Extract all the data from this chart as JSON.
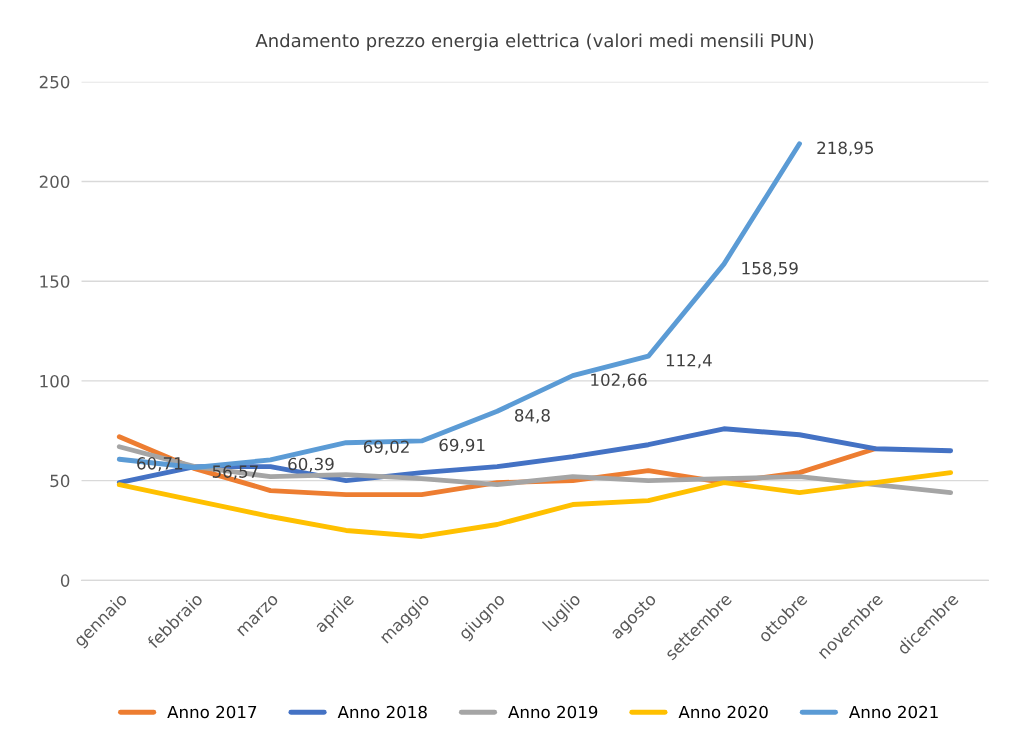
{
  "chart_data": {
    "type": "line",
    "title": "Andamento prezzo energia elettrica (valori medi mensili PUN)",
    "categories": [
      "gennaio",
      "febbraio",
      "marzo",
      "aprile",
      "maggio",
      "giugno",
      "luglio",
      "agosto",
      "settembre",
      "ottobre",
      "novembre",
      "dicembre"
    ],
    "series": [
      {
        "name": "Anno 2017",
        "color": "#ed7d31",
        "values": [
          72,
          56,
          45,
          43,
          43,
          49,
          50,
          55,
          49,
          54,
          66,
          null
        ]
      },
      {
        "name": "Anno 2018",
        "color": "#4472c4",
        "values": [
          49,
          57,
          57,
          50,
          54,
          57,
          62,
          68,
          76,
          73,
          66,
          65
        ]
      },
      {
        "name": "Anno 2019",
        "color": "#a5a5a5",
        "values": [
          67,
          57,
          52,
          53,
          51,
          48,
          52,
          50,
          51,
          52,
          48,
          44
        ]
      },
      {
        "name": "Anno 2020",
        "color": "#ffc000",
        "values": [
          48,
          40,
          32,
          25,
          22,
          28,
          38,
          40,
          49,
          44,
          49,
          54
        ]
      },
      {
        "name": "Anno 2021",
        "color": "#5b9bd5",
        "values": [
          60.71,
          56.57,
          60.39,
          69.02,
          69.91,
          84.8,
          102.66,
          112.4,
          158.59,
          218.95,
          null,
          null
        ],
        "value_labels": [
          "60,71",
          "56,57",
          "60,39",
          "69,02",
          "69,91",
          "84,8",
          "102,66",
          "112,4",
          "158,59",
          "218,95",
          null,
          null
        ]
      }
    ],
    "ylim": [
      0,
      250
    ],
    "yticks": [
      0,
      50,
      100,
      150,
      200,
      250
    ],
    "grid": "y",
    "legend": "bottom",
    "marker": "none",
    "line_style": "solid"
  }
}
